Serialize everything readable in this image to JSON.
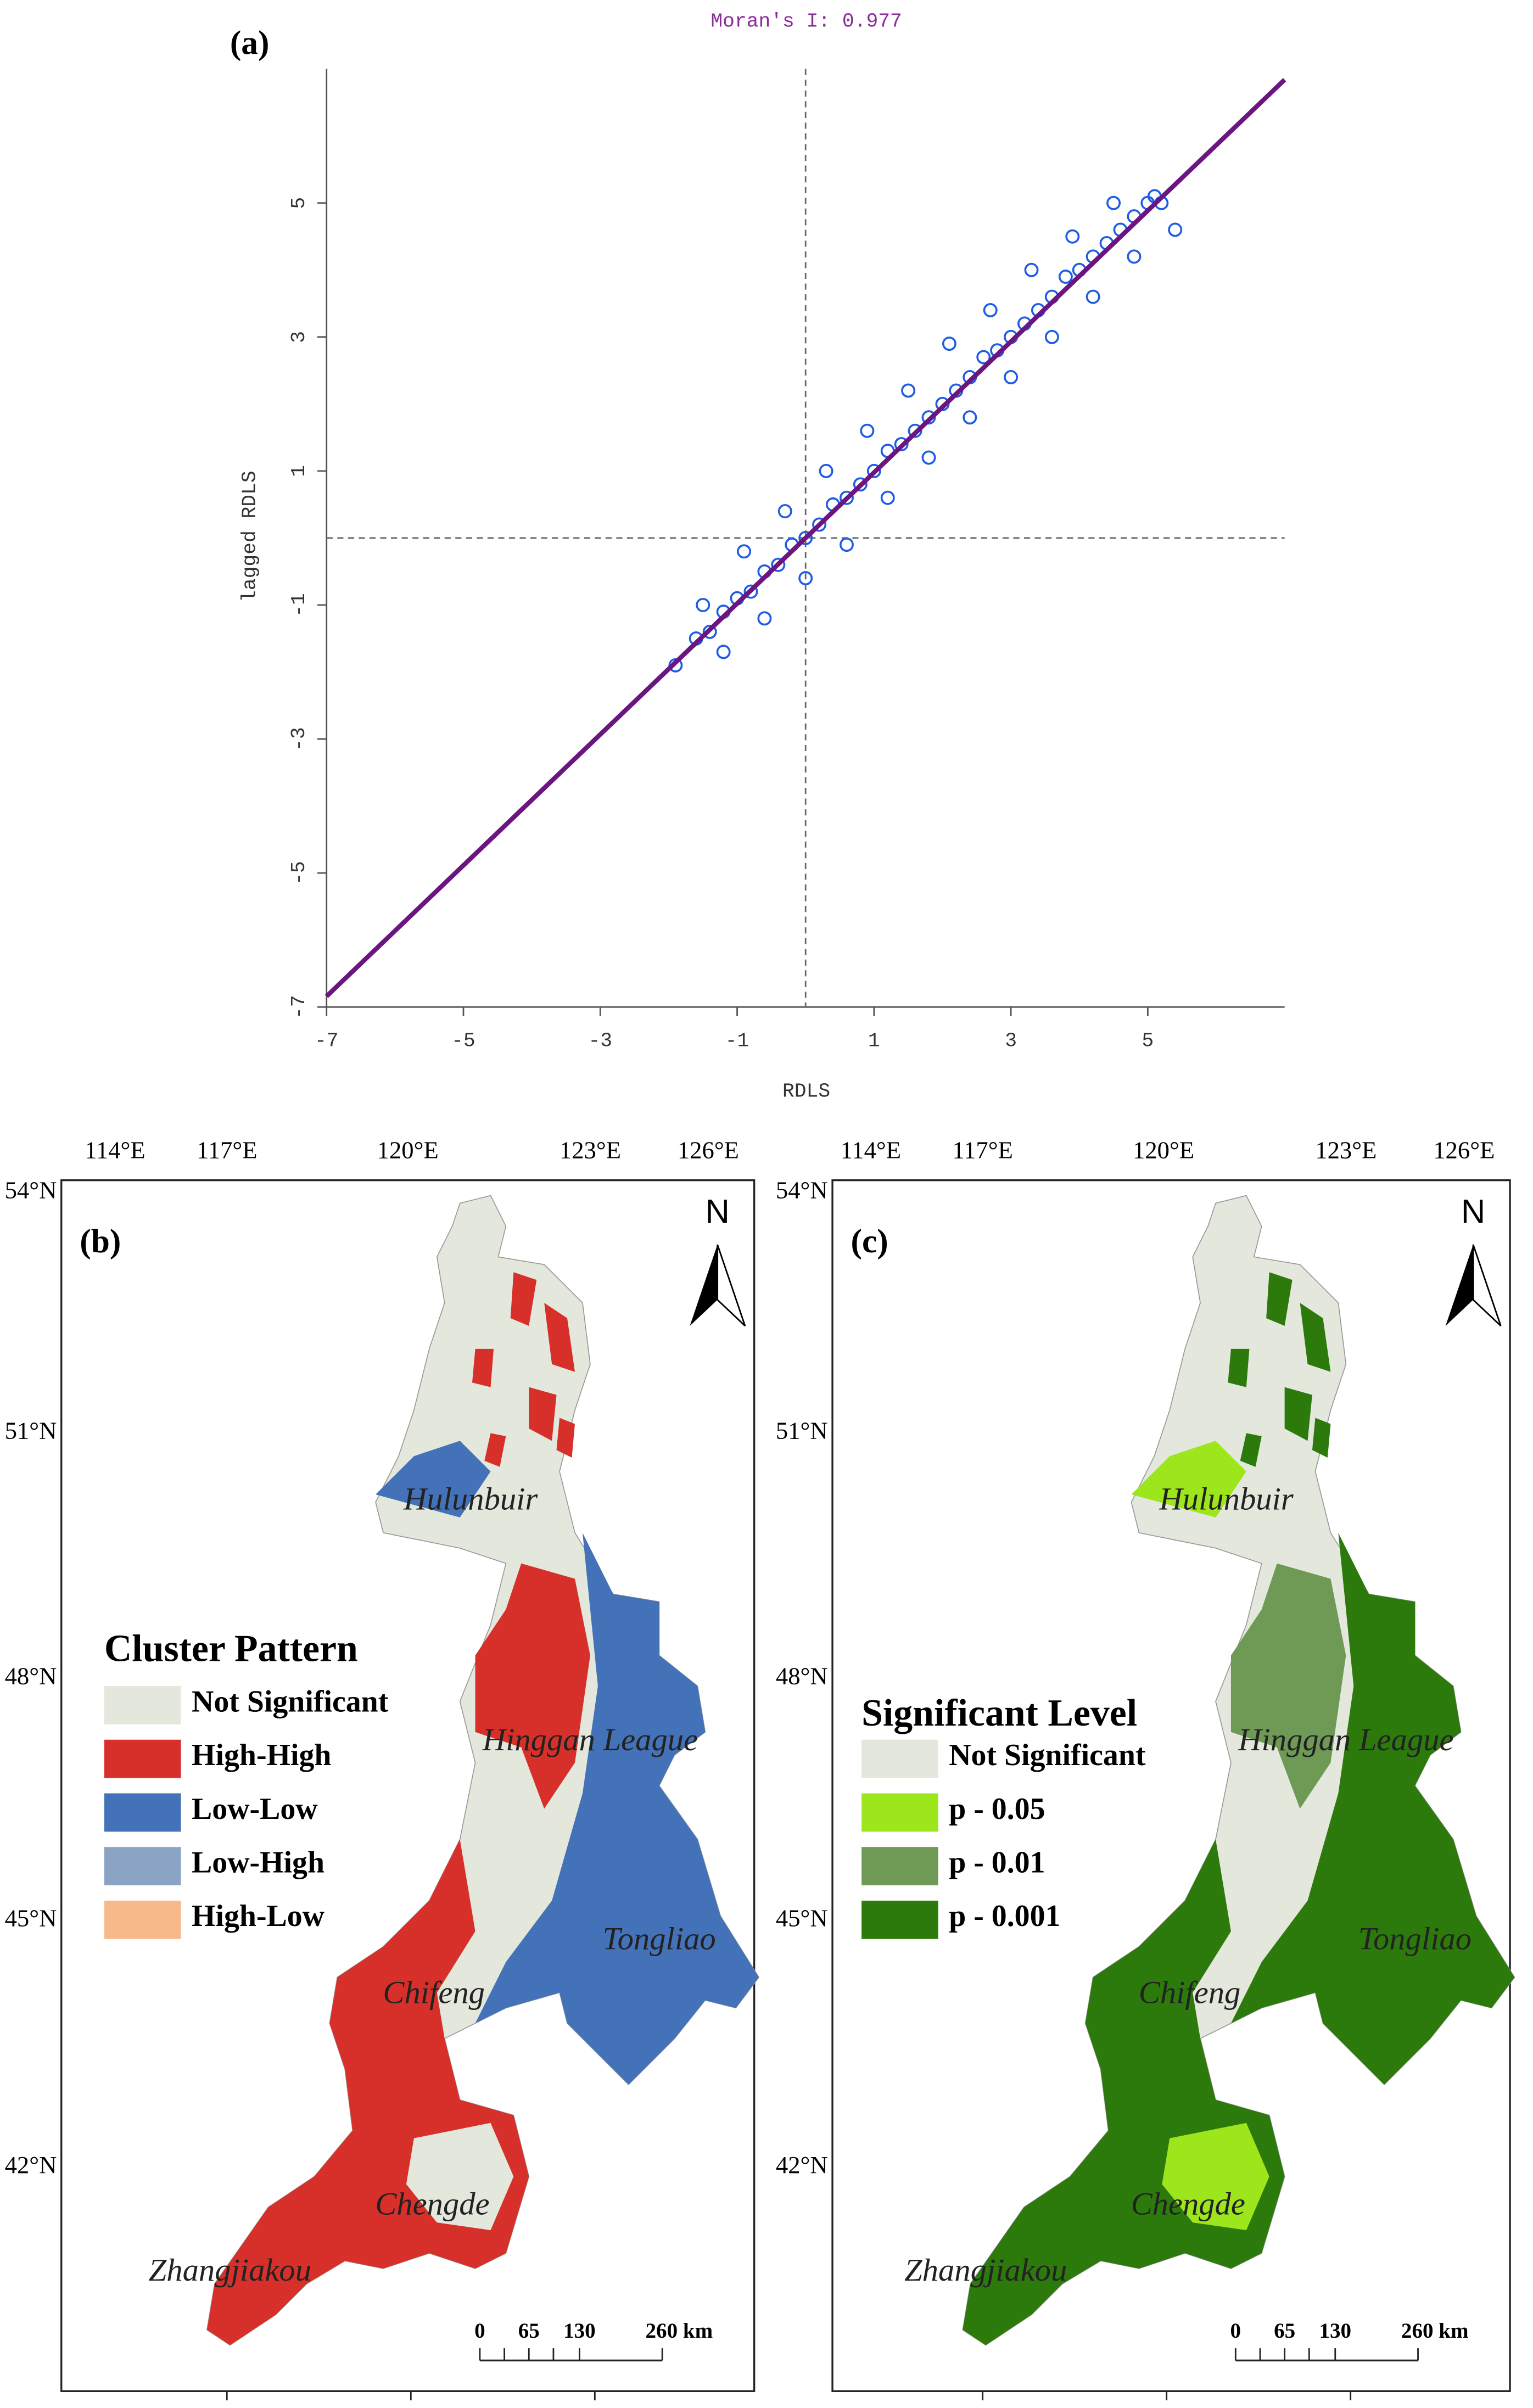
{
  "chart_data": {
    "type": "scatter",
    "panel_label": "(a)",
    "title": "Moran's I: 0.977",
    "xlabel": "RDLS",
    "ylabel": "lagged RDLS",
    "xlim": [
      -7,
      7
    ],
    "ylim": [
      -7,
      7
    ],
    "xticks": [
      -7,
      -5,
      -3,
      -1,
      1,
      3,
      5
    ],
    "yticks": [
      -7,
      -5,
      -3,
      -1,
      1,
      3,
      5
    ],
    "crosshair": {
      "x": 0,
      "y": 0
    },
    "series": [
      {
        "type": "scatter",
        "color": "#1f5ce6",
        "x": [
          -1.9,
          -1.6,
          -1.4,
          -1.2,
          -1.0,
          -0.8,
          -0.6,
          -0.4,
          -0.2,
          0.0,
          0.2,
          0.4,
          0.6,
          0.8,
          1.0,
          1.2,
          1.4,
          1.6,
          1.8,
          2.0,
          2.2,
          2.4,
          2.6,
          2.8,
          3.0,
          3.2,
          3.4,
          3.6,
          3.8,
          4.0,
          4.2,
          4.4,
          4.6,
          4.8,
          5.0,
          5.2,
          5.4,
          -1.5,
          -0.9,
          -0.3,
          0.3,
          0.9,
          1.5,
          2.1,
          2.7,
          3.3,
          3.9,
          4.5,
          5.1,
          -1.2,
          -0.6,
          0,
          0.6,
          1.2,
          1.8,
          2.4,
          3.0,
          3.6,
          4.2,
          4.8
        ],
        "values": [
          -1.9,
          -1.5,
          -1.4,
          -1.1,
          -0.9,
          -0.8,
          -0.5,
          -0.4,
          -0.1,
          0.0,
          0.2,
          0.5,
          0.6,
          0.8,
          1.0,
          1.3,
          1.4,
          1.6,
          1.8,
          2.0,
          2.2,
          2.4,
          2.7,
          2.8,
          3.0,
          3.2,
          3.4,
          3.6,
          3.9,
          4.0,
          4.2,
          4.4,
          4.6,
          4.8,
          5.0,
          5.0,
          4.6,
          -1.0,
          -0.2,
          0.4,
          1.0,
          1.6,
          2.2,
          2.9,
          3.4,
          4.0,
          4.5,
          5.0,
          5.1,
          -1.7,
          -1.2,
          -0.6,
          -0.1,
          0.6,
          1.2,
          1.8,
          2.4,
          3.0,
          3.6,
          4.2
        ]
      },
      {
        "type": "line",
        "color": "#6b1580",
        "x": [
          -7,
          7
        ],
        "values": [
          -6.84,
          6.84
        ]
      }
    ]
  },
  "maps": {
    "lon_labels": [
      "114°E",
      "117°E",
      "120°E",
      "123°E",
      "126°E"
    ],
    "lat_labels": [
      "54°N",
      "51°N",
      "48°N",
      "45°N",
      "42°N"
    ],
    "scale_labels": [
      "0",
      "65",
      "130",
      "260 km"
    ],
    "north": "N",
    "panels": [
      {
        "label": "(b)",
        "legend_title": "Cluster Pattern",
        "legend": [
          {
            "text": "Not Significant",
            "color": "#e3e7dc"
          },
          {
            "text": "High-High",
            "color": "#d7302a"
          },
          {
            "text": "Low-Low",
            "color": "#4472b8"
          },
          {
            "text": "Low-High",
            "color": "#8aa3c4"
          },
          {
            "text": "High-Low",
            "color": "#f7b98a"
          }
        ],
        "cities": [
          "Hulunbuir",
          "Hinggan League",
          "Tongliao",
          "Chifeng",
          "Chengde",
          "Zhangjiakou"
        ]
      },
      {
        "label": "(c)",
        "legend_title": "Significant Level",
        "legend": [
          {
            "text": "Not Significant",
            "color": "#e3e7dc"
          },
          {
            "text": "p - 0.05",
            "color": "#9ee61c"
          },
          {
            "text": "p - 0.01",
            "color": "#6e9a55"
          },
          {
            "text": "p - 0.001",
            "color": "#2d7a0c"
          }
        ],
        "cities": [
          "Hulunbuir",
          "Hinggan League",
          "Tongliao",
          "Chifeng",
          "Chengde",
          "Zhangjiakou"
        ]
      }
    ]
  }
}
